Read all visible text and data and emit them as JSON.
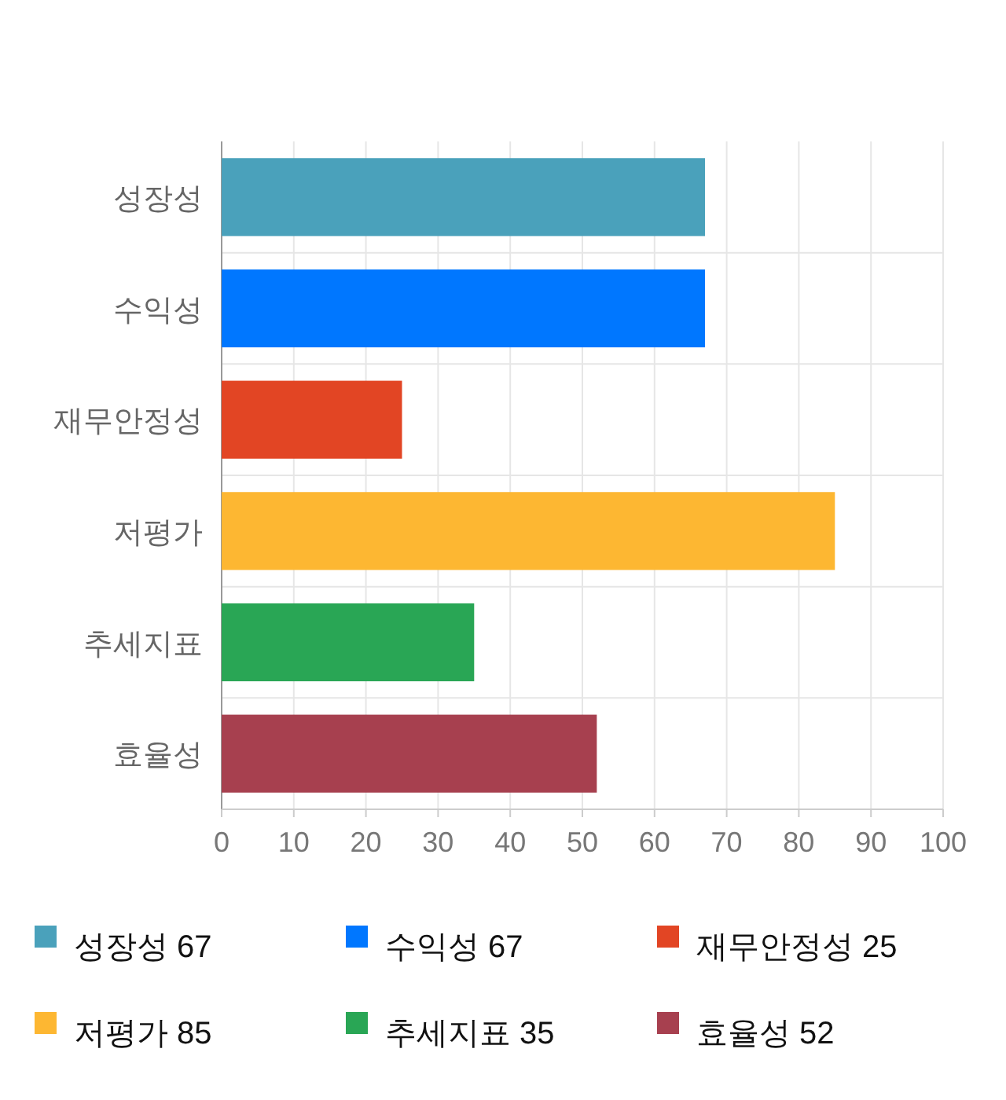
{
  "chart_data": {
    "type": "bar",
    "orientation": "horizontal",
    "stacked": true,
    "categories": [
      "성장성",
      "수익성",
      "재무안정성",
      "저평가",
      "추세지표",
      "효율성"
    ],
    "series": [
      {
        "name": "성장성 67",
        "color": "#4aa1bb",
        "values": [
          67,
          null,
          null,
          null,
          null,
          null
        ]
      },
      {
        "name": "수익성 67",
        "color": "#0077ff",
        "values": [
          null,
          67,
          null,
          null,
          null,
          null
        ]
      },
      {
        "name": "재무안정성 25",
        "color": "#e24524",
        "values": [
          null,
          null,
          25,
          null,
          null,
          null
        ]
      },
      {
        "name": "저평가 85",
        "color": "#fdb732",
        "values": [
          null,
          null,
          null,
          85,
          null,
          null
        ]
      },
      {
        "name": "추세지표 35",
        "color": "#29a655",
        "values": [
          null,
          null,
          null,
          null,
          35,
          null
        ]
      },
      {
        "name": "효율성 52",
        "color": "#a7404f",
        "values": [
          null,
          null,
          null,
          null,
          null,
          52
        ]
      }
    ],
    "xlim": [
      0,
      100
    ],
    "xticks": [
      0,
      10,
      20,
      30,
      40,
      50,
      60,
      70,
      80,
      90,
      100
    ],
    "grid": true,
    "legend": "bottom"
  }
}
